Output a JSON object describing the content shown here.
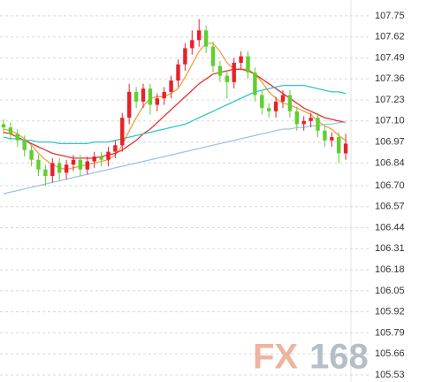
{
  "chart_data": {
    "type": "candlestick",
    "ylim": [
      105.486,
      107.848
    ],
    "yticks": [
      107.75,
      107.62,
      107.49,
      107.36,
      107.23,
      {
        "value": 107.1,
        "label": "107.10"
      },
      106.97,
      106.84,
      {
        "value": 106.7,
        "label": "106.70"
      },
      106.57,
      106.44,
      106.31,
      106.18,
      106.05,
      105.92,
      105.79,
      105.66,
      105.53
    ],
    "grid": true,
    "up_color": "#e8202a",
    "down_color": "#5fcf2f",
    "open": [
      107.08,
      107.06,
      107.02,
      106.98,
      106.92,
      106.86,
      106.8,
      106.76,
      106.84,
      106.78,
      106.83,
      106.86,
      106.8,
      106.85,
      106.88,
      106.86,
      106.91,
      106.95,
      107.12,
      107.28,
      107.22,
      107.3,
      107.2,
      107.24,
      107.28,
      107.35,
      107.45,
      107.55,
      107.6,
      107.66,
      107.56,
      107.44,
      107.38,
      107.34,
      107.46,
      107.5,
      107.4,
      107.26,
      107.18,
      107.16,
      107.22,
      107.26,
      107.16,
      107.08,
      107.1,
      107.12,
      107.04,
      106.98,
      107.0,
      106.9
    ],
    "high": [
      107.11,
      107.09,
      107.05,
      107.01,
      106.95,
      106.89,
      106.83,
      106.87,
      106.87,
      106.86,
      106.89,
      106.89,
      106.88,
      106.91,
      106.91,
      106.94,
      106.98,
      107.15,
      107.33,
      107.31,
      107.33,
      107.33,
      107.27,
      107.31,
      107.38,
      107.48,
      107.58,
      107.66,
      107.73,
      107.69,
      107.59,
      107.47,
      107.41,
      107.49,
      107.53,
      107.53,
      107.43,
      107.29,
      107.21,
      107.25,
      107.29,
      107.29,
      107.19,
      107.13,
      107.15,
      107.15,
      107.07,
      107.03,
      107.03,
      107.02
    ],
    "low": [
      107.02,
      106.98,
      106.94,
      106.88,
      106.82,
      106.76,
      106.7,
      106.72,
      106.73,
      106.74,
      106.79,
      106.76,
      106.77,
      106.81,
      106.82,
      106.82,
      106.87,
      106.91,
      107.08,
      107.18,
      107.18,
      107.14,
      107.16,
      107.2,
      107.24,
      107.31,
      107.41,
      107.51,
      107.56,
      107.52,
      107.4,
      107.34,
      107.24,
      107.3,
      107.42,
      107.36,
      107.22,
      107.14,
      107.12,
      107.12,
      107.18,
      107.12,
      107.04,
      107.04,
      107.06,
      107.0,
      106.94,
      106.94,
      106.84,
      106.86
    ],
    "close": [
      107.06,
      107.02,
      106.98,
      106.92,
      106.86,
      106.8,
      106.76,
      106.84,
      106.78,
      106.83,
      106.86,
      106.8,
      106.85,
      106.88,
      106.86,
      106.91,
      106.95,
      107.12,
      107.28,
      107.22,
      107.3,
      107.2,
      107.24,
      107.28,
      107.35,
      107.45,
      107.55,
      107.6,
      107.66,
      107.56,
      107.44,
      107.38,
      107.34,
      107.46,
      107.5,
      107.4,
      107.26,
      107.18,
      107.16,
      107.22,
      107.26,
      107.16,
      107.08,
      107.1,
      107.12,
      107.04,
      106.98,
      107.0,
      106.9,
      106.96
    ],
    "series": [
      {
        "color": "#f0a040",
        "values": [
          107.05,
          107.04,
          107.02,
          106.99,
          106.95,
          106.9,
          106.86,
          106.83,
          106.81,
          106.8,
          106.81,
          106.82,
          106.83,
          106.84,
          106.85,
          106.86,
          106.89,
          106.95,
          107.04,
          107.12,
          107.19,
          107.24,
          107.25,
          107.25,
          107.27,
          107.3,
          107.37,
          107.45,
          107.53,
          107.58,
          107.58,
          107.53,
          107.46,
          107.42,
          107.42,
          107.42,
          107.39,
          107.34,
          107.28,
          107.24,
          107.21,
          107.2,
          107.18,
          107.16,
          107.14,
          107.1,
          107.07,
          107.05,
          107.01,
          106.98
        ]
      },
      {
        "color": "#e83030",
        "values": [
          107.03,
          107.02,
          107.0,
          106.98,
          106.96,
          106.94,
          106.92,
          106.9,
          106.89,
          106.88,
          106.87,
          106.87,
          106.87,
          106.87,
          106.88,
          106.89,
          106.9,
          106.92,
          106.95,
          106.98,
          107.02,
          107.05,
          107.09,
          107.13,
          107.17,
          107.21,
          107.25,
          107.29,
          107.33,
          107.36,
          107.39,
          107.4,
          107.41,
          107.42,
          107.42,
          107.41,
          107.39,
          107.36,
          107.33,
          107.3,
          107.27,
          107.24,
          107.21,
          107.18,
          107.16,
          107.14,
          107.12,
          107.11,
          107.1,
          107.09
        ]
      },
      {
        "color": "#30c8c0",
        "values": [
          107.0,
          106.99,
          106.99,
          106.98,
          106.98,
          106.97,
          106.97,
          106.97,
          106.96,
          106.96,
          106.96,
          106.96,
          106.96,
          106.97,
          106.97,
          106.97,
          106.98,
          106.99,
          107.0,
          107.01,
          107.02,
          107.03,
          107.04,
          107.05,
          107.06,
          107.07,
          107.08,
          107.1,
          107.12,
          107.14,
          107.16,
          107.18,
          107.2,
          107.22,
          107.24,
          107.26,
          107.28,
          107.29,
          107.3,
          107.31,
          107.32,
          107.32,
          107.32,
          107.32,
          107.31,
          107.3,
          107.29,
          107.28,
          107.28,
          107.27
        ]
      },
      {
        "color": "#9cc4e4",
        "values": [
          106.65,
          106.66,
          106.67,
          106.68,
          106.69,
          106.7,
          106.71,
          106.72,
          106.73,
          106.74,
          106.75,
          106.76,
          106.77,
          106.78,
          106.79,
          106.8,
          106.81,
          106.82,
          106.83,
          106.84,
          106.85,
          106.86,
          106.87,
          106.88,
          106.89,
          106.9,
          106.91,
          106.92,
          106.93,
          106.94,
          106.95,
          106.96,
          106.97,
          106.98,
          106.99,
          107.0,
          107.01,
          107.02,
          107.03,
          107.04,
          107.05,
          107.05,
          107.06,
          107.06,
          107.07,
          107.07,
          107.08,
          107.08,
          107.09,
          107.09
        ]
      }
    ]
  },
  "watermark": {
    "brand": "FX",
    "number": "168"
  }
}
